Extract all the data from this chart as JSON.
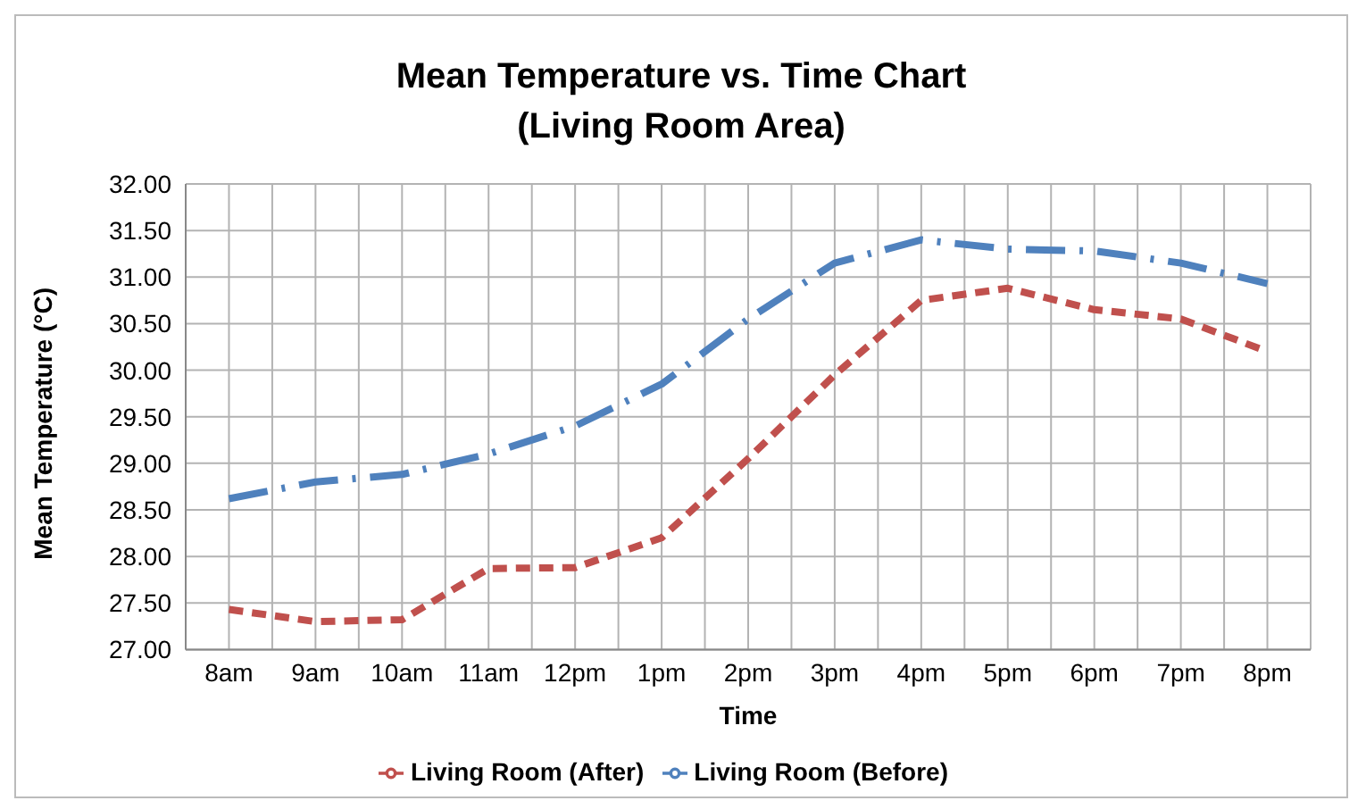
{
  "chart_data": {
    "type": "line",
    "title": "Mean Temperature vs. Time Chart\n(Living Room Area)",
    "xlabel": "Time",
    "ylabel": "Mean Temperature (°C)",
    "categories": [
      "8am",
      "9am",
      "10am",
      "11am",
      "12pm",
      "1pm",
      "2pm",
      "3pm",
      "4pm",
      "5pm",
      "6pm",
      "7pm",
      "8pm"
    ],
    "series": [
      {
        "name": "Living Room (Before)",
        "color": "#4f81bd",
        "line_style": "dashdot",
        "values": [
          28.62,
          28.8,
          28.88,
          29.1,
          29.4,
          29.85,
          30.55,
          31.15,
          31.4,
          31.3,
          31.28,
          31.15,
          30.93
        ]
      },
      {
        "name": "Living Room (After)",
        "color": "#c0504d",
        "line_style": "dashed",
        "values": [
          27.43,
          27.3,
          27.32,
          27.87,
          27.88,
          28.2,
          29.05,
          29.95,
          30.75,
          30.88,
          30.65,
          30.55,
          30.2
        ]
      }
    ],
    "ylim": [
      27,
      32
    ],
    "yticks": [
      {
        "value": 27,
        "label": "27.00"
      },
      {
        "value": 27.5,
        "label": "27.50"
      },
      {
        "value": 28,
        "label": "28.00"
      },
      {
        "value": 28.5,
        "label": "28.50"
      },
      {
        "value": 29,
        "label": "29.00"
      },
      {
        "value": 29.5,
        "label": "29.50"
      },
      {
        "value": 30,
        "label": "30.00"
      },
      {
        "value": 30.5,
        "label": "30.50"
      },
      {
        "value": 31,
        "label": "31.00"
      },
      {
        "value": 31.5,
        "label": "31.50"
      },
      {
        "value": 32,
        "label": "32.00"
      }
    ],
    "grid": true,
    "legend": "bottom",
    "marker": "none"
  }
}
